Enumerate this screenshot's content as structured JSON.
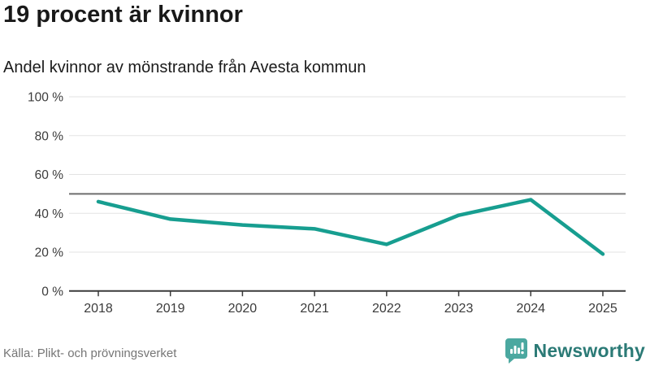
{
  "header": {
    "title": "19 procent är kvinnor",
    "subtitle": "Andel kvinnor av mönstrande från Avesta kommun"
  },
  "chart_data": {
    "type": "line",
    "title": "19 procent är kvinnor",
    "subtitle": "Andel kvinnor av mönstrande från Avesta kommun",
    "categories": [
      "2018",
      "2019",
      "2020",
      "2021",
      "2022",
      "2023",
      "2024",
      "2025"
    ],
    "series": [
      {
        "name": "Andel kvinnor av mönstrande",
        "values": [
          46,
          37,
          34,
          32,
          24,
          39,
          47,
          19
        ]
      }
    ],
    "unit": "%",
    "ylim": [
      0,
      100
    ],
    "yticks": [
      0,
      20,
      40,
      60,
      80,
      100
    ],
    "ytick_labels": [
      "0 %",
      "20 %",
      "40 %",
      "60 %",
      "80 %",
      "100 %"
    ],
    "reference_line": 50,
    "grid": "horizontal",
    "legend": "none",
    "colors": {
      "line": "#179e90",
      "gridline": "#e3e3e3",
      "axis": "#3b3b3b",
      "reference_line": "#6e6e6e",
      "tick_label": "#3b3b3b"
    }
  },
  "footer": {
    "source": "Källa: Plikt- och prövningsverket",
    "brand": "Newsworthy"
  },
  "icons": {
    "logo": "newsworthy-speech-bubble-barchart-icon"
  }
}
